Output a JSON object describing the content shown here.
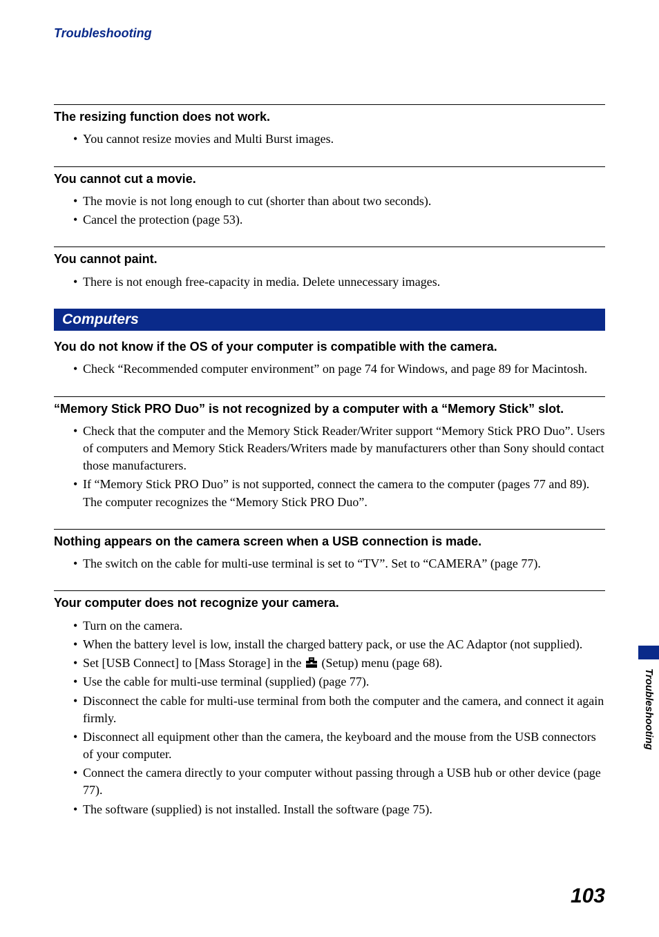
{
  "header": {
    "section": "Troubleshooting"
  },
  "issues_a": [
    {
      "title": "The resizing function does not work.",
      "bullets": [
        "You cannot resize movies and Multi Burst images."
      ]
    },
    {
      "title": "You cannot cut a movie.",
      "bullets": [
        "The movie is not long enough to cut (shorter than about two seconds).",
        "Cancel the protection (page 53)."
      ]
    },
    {
      "title": "You cannot paint.",
      "bullets": [
        "There is not enough free-capacity in media. Delete unnecessary images."
      ]
    }
  ],
  "section_band": "Computers",
  "issues_b": [
    {
      "title": "You do not know if the OS of your computer is compatible with the camera.",
      "bullets": [
        "Check “Recommended computer environment” on page 74 for Windows, and page 89 for Macintosh."
      ]
    },
    {
      "title": "“Memory Stick PRO Duo” is not recognized by a computer with a “Memory Stick” slot.",
      "bullets": [
        "Check that the computer and the Memory Stick Reader/Writer support “Memory Stick PRO Duo”. Users of computers and Memory Stick Readers/Writers made by manufacturers other than Sony should contact those manufacturers.",
        "If “Memory Stick PRO Duo” is not supported, connect the camera to the computer (pages 77 and 89). The computer recognizes the “Memory Stick PRO Duo”."
      ]
    },
    {
      "title": "Nothing appears on the camera screen when a USB connection is made.",
      "bullets": [
        "The switch on the cable for multi-use terminal is set to “TV”. Set to “CAMERA” (page 77)."
      ]
    },
    {
      "title": "Your computer does not recognize your camera.",
      "bullets": [
        "Turn on the camera.",
        "When the battery level is low, install the charged battery pack, or use the AC Adaptor (not supplied).",
        {
          "pre": "Set [USB Connect] to [Mass Storage] in the ",
          "post": " (Setup) menu (page 68).",
          "icon": true
        },
        "Use the cable for multi-use terminal (supplied) (page 77).",
        "Disconnect the cable for multi-use terminal from both the computer and the camera, and connect it again firmly.",
        "Disconnect all equipment other than the camera, the keyboard and the mouse from the USB connectors of your computer.",
        "Connect the camera directly to your computer without passing through a USB hub or other device (page 77).",
        "The software (supplied) is not installed. Install the software (page 75)."
      ]
    }
  ],
  "side": {
    "label": "Troubleshooting"
  },
  "page_number": "103"
}
